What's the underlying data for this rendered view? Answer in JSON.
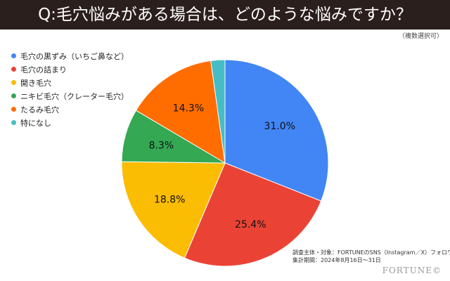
{
  "header": {
    "title": "Q:毛穴悩みがある場合は、どのような悩みですか？",
    "note": "（複数選択可）"
  },
  "colors": {
    "header_bg": "#2b1f1d"
  },
  "chart_data": {
    "type": "pie",
    "categories": [
      "毛穴の黒ずみ（いちご鼻など）",
      "毛穴の詰まり",
      "開き毛穴",
      "ニキビ毛穴（クレーター毛穴）",
      "たるみ毛穴",
      "特になし"
    ],
    "values": [
      31.0,
      25.4,
      18.8,
      8.3,
      14.3,
      2.2
    ],
    "labels": [
      "31.0%",
      "25.4%",
      "18.8%",
      "8.3%",
      "14.3%",
      ""
    ],
    "colors": [
      "#4285f4",
      "#ea4335",
      "#fbbc04",
      "#34a853",
      "#ff6d01",
      "#46bdc6"
    ],
    "legend_position": "top-left",
    "start_angle": "12 o'clock",
    "direction": "clockwise"
  },
  "footer": {
    "source_line1": "調査主体・対象：FORTUNEのSNS（Instagram／X）フォロワー様",
    "source_line2": "集計期間：2024年8月16日〜31日",
    "brand": "FORTUNE©"
  }
}
